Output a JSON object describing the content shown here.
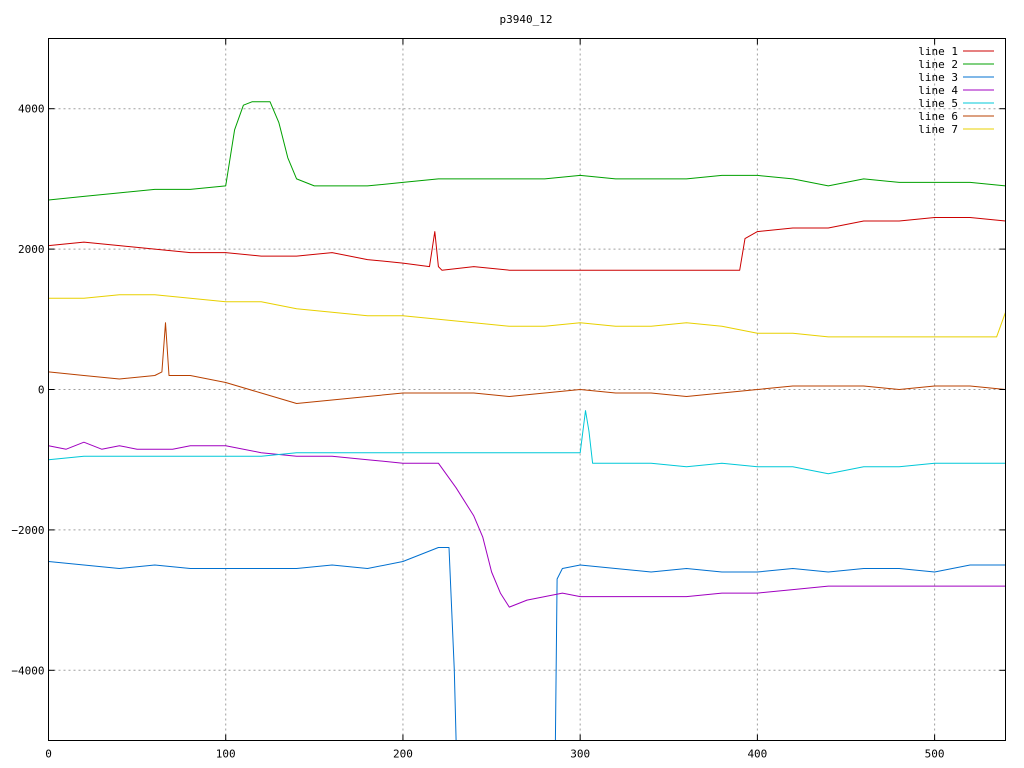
{
  "chart_data": {
    "type": "line",
    "title": "p3940_12",
    "xlabel": "",
    "ylabel": "",
    "xlim": [
      0,
      540
    ],
    "ylim": [
      -5000,
      5000
    ],
    "xticks": [
      0,
      100,
      200,
      300,
      400,
      500
    ],
    "yticks": [
      -4000,
      -2000,
      0,
      2000,
      4000
    ],
    "xtick_labels": [
      "0",
      "100",
      "200",
      "300",
      "400",
      "500"
    ],
    "ytick_labels": [
      "−4000",
      "−2000",
      "0",
      "2000",
      "4000"
    ],
    "grid": true,
    "legend_position": "top-right",
    "series": [
      {
        "name": "line 1",
        "color": "#cc0000",
        "x": [
          0,
          20,
          40,
          60,
          80,
          100,
          120,
          140,
          160,
          180,
          200,
          215,
          218,
          220,
          222,
          240,
          260,
          280,
          300,
          320,
          340,
          360,
          380,
          390,
          393,
          400,
          420,
          440,
          460,
          480,
          500,
          520,
          540
        ],
        "y": [
          2050,
          2100,
          2050,
          2000,
          1950,
          1950,
          1900,
          1900,
          1950,
          1850,
          1800,
          1750,
          2250,
          1750,
          1700,
          1750,
          1700,
          1700,
          1700,
          1700,
          1700,
          1700,
          1700,
          1700,
          2150,
          2250,
          2300,
          2300,
          2400,
          2400,
          2450,
          2450,
          2400
        ]
      },
      {
        "name": "line 2",
        "color": "#00a000",
        "x": [
          0,
          20,
          40,
          60,
          80,
          100,
          105,
          110,
          115,
          120,
          125,
          130,
          135,
          140,
          150,
          160,
          180,
          200,
          220,
          240,
          260,
          280,
          300,
          320,
          340,
          360,
          380,
          400,
          420,
          440,
          460,
          480,
          500,
          520,
          540
        ],
        "y": [
          2700,
          2750,
          2800,
          2850,
          2850,
          2900,
          3700,
          4050,
          4100,
          4100,
          4100,
          3800,
          3300,
          3000,
          2900,
          2900,
          2900,
          2950,
          3000,
          3000,
          3000,
          3000,
          3050,
          3000,
          3000,
          3000,
          3050,
          3050,
          3000,
          2900,
          3000,
          2950,
          2950,
          2950,
          2900
        ]
      },
      {
        "name": "line 3",
        "color": "#0070d0",
        "x": [
          0,
          20,
          40,
          60,
          80,
          100,
          120,
          140,
          160,
          180,
          200,
          220,
          226,
          229,
          230,
          286,
          287,
          290,
          300,
          320,
          340,
          360,
          380,
          400,
          420,
          440,
          460,
          480,
          500,
          520,
          540
        ],
        "y": [
          -2450,
          -2500,
          -2550,
          -2500,
          -2550,
          -2550,
          -2550,
          -2550,
          -2500,
          -2550,
          -2450,
          -2250,
          -2250,
          -4000,
          -5000,
          -5000,
          -2700,
          -2550,
          -2500,
          -2550,
          -2600,
          -2550,
          -2600,
          -2600,
          -2550,
          -2600,
          -2550,
          -2550,
          -2600,
          -2500,
          -2500
        ]
      },
      {
        "name": "line 4",
        "color": "#a000c0",
        "x": [
          0,
          10,
          20,
          30,
          40,
          50,
          60,
          70,
          80,
          90,
          100,
          120,
          140,
          160,
          180,
          200,
          220,
          230,
          240,
          245,
          250,
          255,
          260,
          270,
          280,
          290,
          300,
          320,
          340,
          360,
          380,
          400,
          420,
          440,
          460,
          480,
          500,
          520,
          540
        ],
        "y": [
          -800,
          -850,
          -750,
          -850,
          -800,
          -850,
          -850,
          -850,
          -800,
          -800,
          -800,
          -900,
          -950,
          -950,
          -1000,
          -1050,
          -1050,
          -1400,
          -1800,
          -2100,
          -2600,
          -2900,
          -3100,
          -3000,
          -2950,
          -2900,
          -2950,
          -2950,
          -2950,
          -2950,
          -2900,
          -2900,
          -2850,
          -2800,
          -2800,
          -2800,
          -2800,
          -2800,
          -2800
        ]
      },
      {
        "name": "line 5",
        "color": "#00c8d8",
        "x": [
          0,
          20,
          40,
          60,
          80,
          100,
          120,
          140,
          160,
          180,
          200,
          220,
          240,
          260,
          280,
          300,
          303,
          305,
          307,
          320,
          340,
          360,
          380,
          400,
          420,
          440,
          460,
          480,
          500,
          520,
          540
        ],
        "y": [
          -1000,
          -950,
          -950,
          -950,
          -950,
          -950,
          -950,
          -900,
          -900,
          -900,
          -900,
          -900,
          -900,
          -900,
          -900,
          -900,
          -300,
          -600,
          -1050,
          -1050,
          -1050,
          -1100,
          -1050,
          -1100,
          -1100,
          -1200,
          -1100,
          -1100,
          -1050,
          -1050,
          -1050
        ]
      },
      {
        "name": "line 6",
        "color": "#b84000",
        "x": [
          0,
          20,
          40,
          60,
          64,
          66,
          68,
          80,
          100,
          120,
          140,
          160,
          180,
          200,
          220,
          240,
          260,
          280,
          300,
          320,
          340,
          360,
          380,
          400,
          420,
          440,
          460,
          480,
          500,
          520,
          540
        ],
        "y": [
          250,
          200,
          150,
          200,
          250,
          950,
          200,
          200,
          100,
          -50,
          -200,
          -150,
          -100,
          -50,
          -50,
          -50,
          -100,
          -50,
          0,
          -50,
          -50,
          -100,
          -50,
          0,
          50,
          50,
          50,
          0,
          50,
          50,
          0
        ]
      },
      {
        "name": "line 7",
        "color": "#e8d000",
        "x": [
          0,
          20,
          40,
          60,
          80,
          100,
          120,
          140,
          160,
          180,
          200,
          220,
          240,
          260,
          280,
          300,
          320,
          340,
          360,
          380,
          400,
          420,
          440,
          460,
          480,
          500,
          520,
          535,
          540
        ],
        "y": [
          1300,
          1300,
          1350,
          1350,
          1300,
          1250,
          1250,
          1150,
          1100,
          1050,
          1050,
          1000,
          950,
          900,
          900,
          950,
          900,
          900,
          950,
          900,
          800,
          800,
          750,
          750,
          750,
          750,
          750,
          750,
          1100
        ]
      }
    ]
  }
}
